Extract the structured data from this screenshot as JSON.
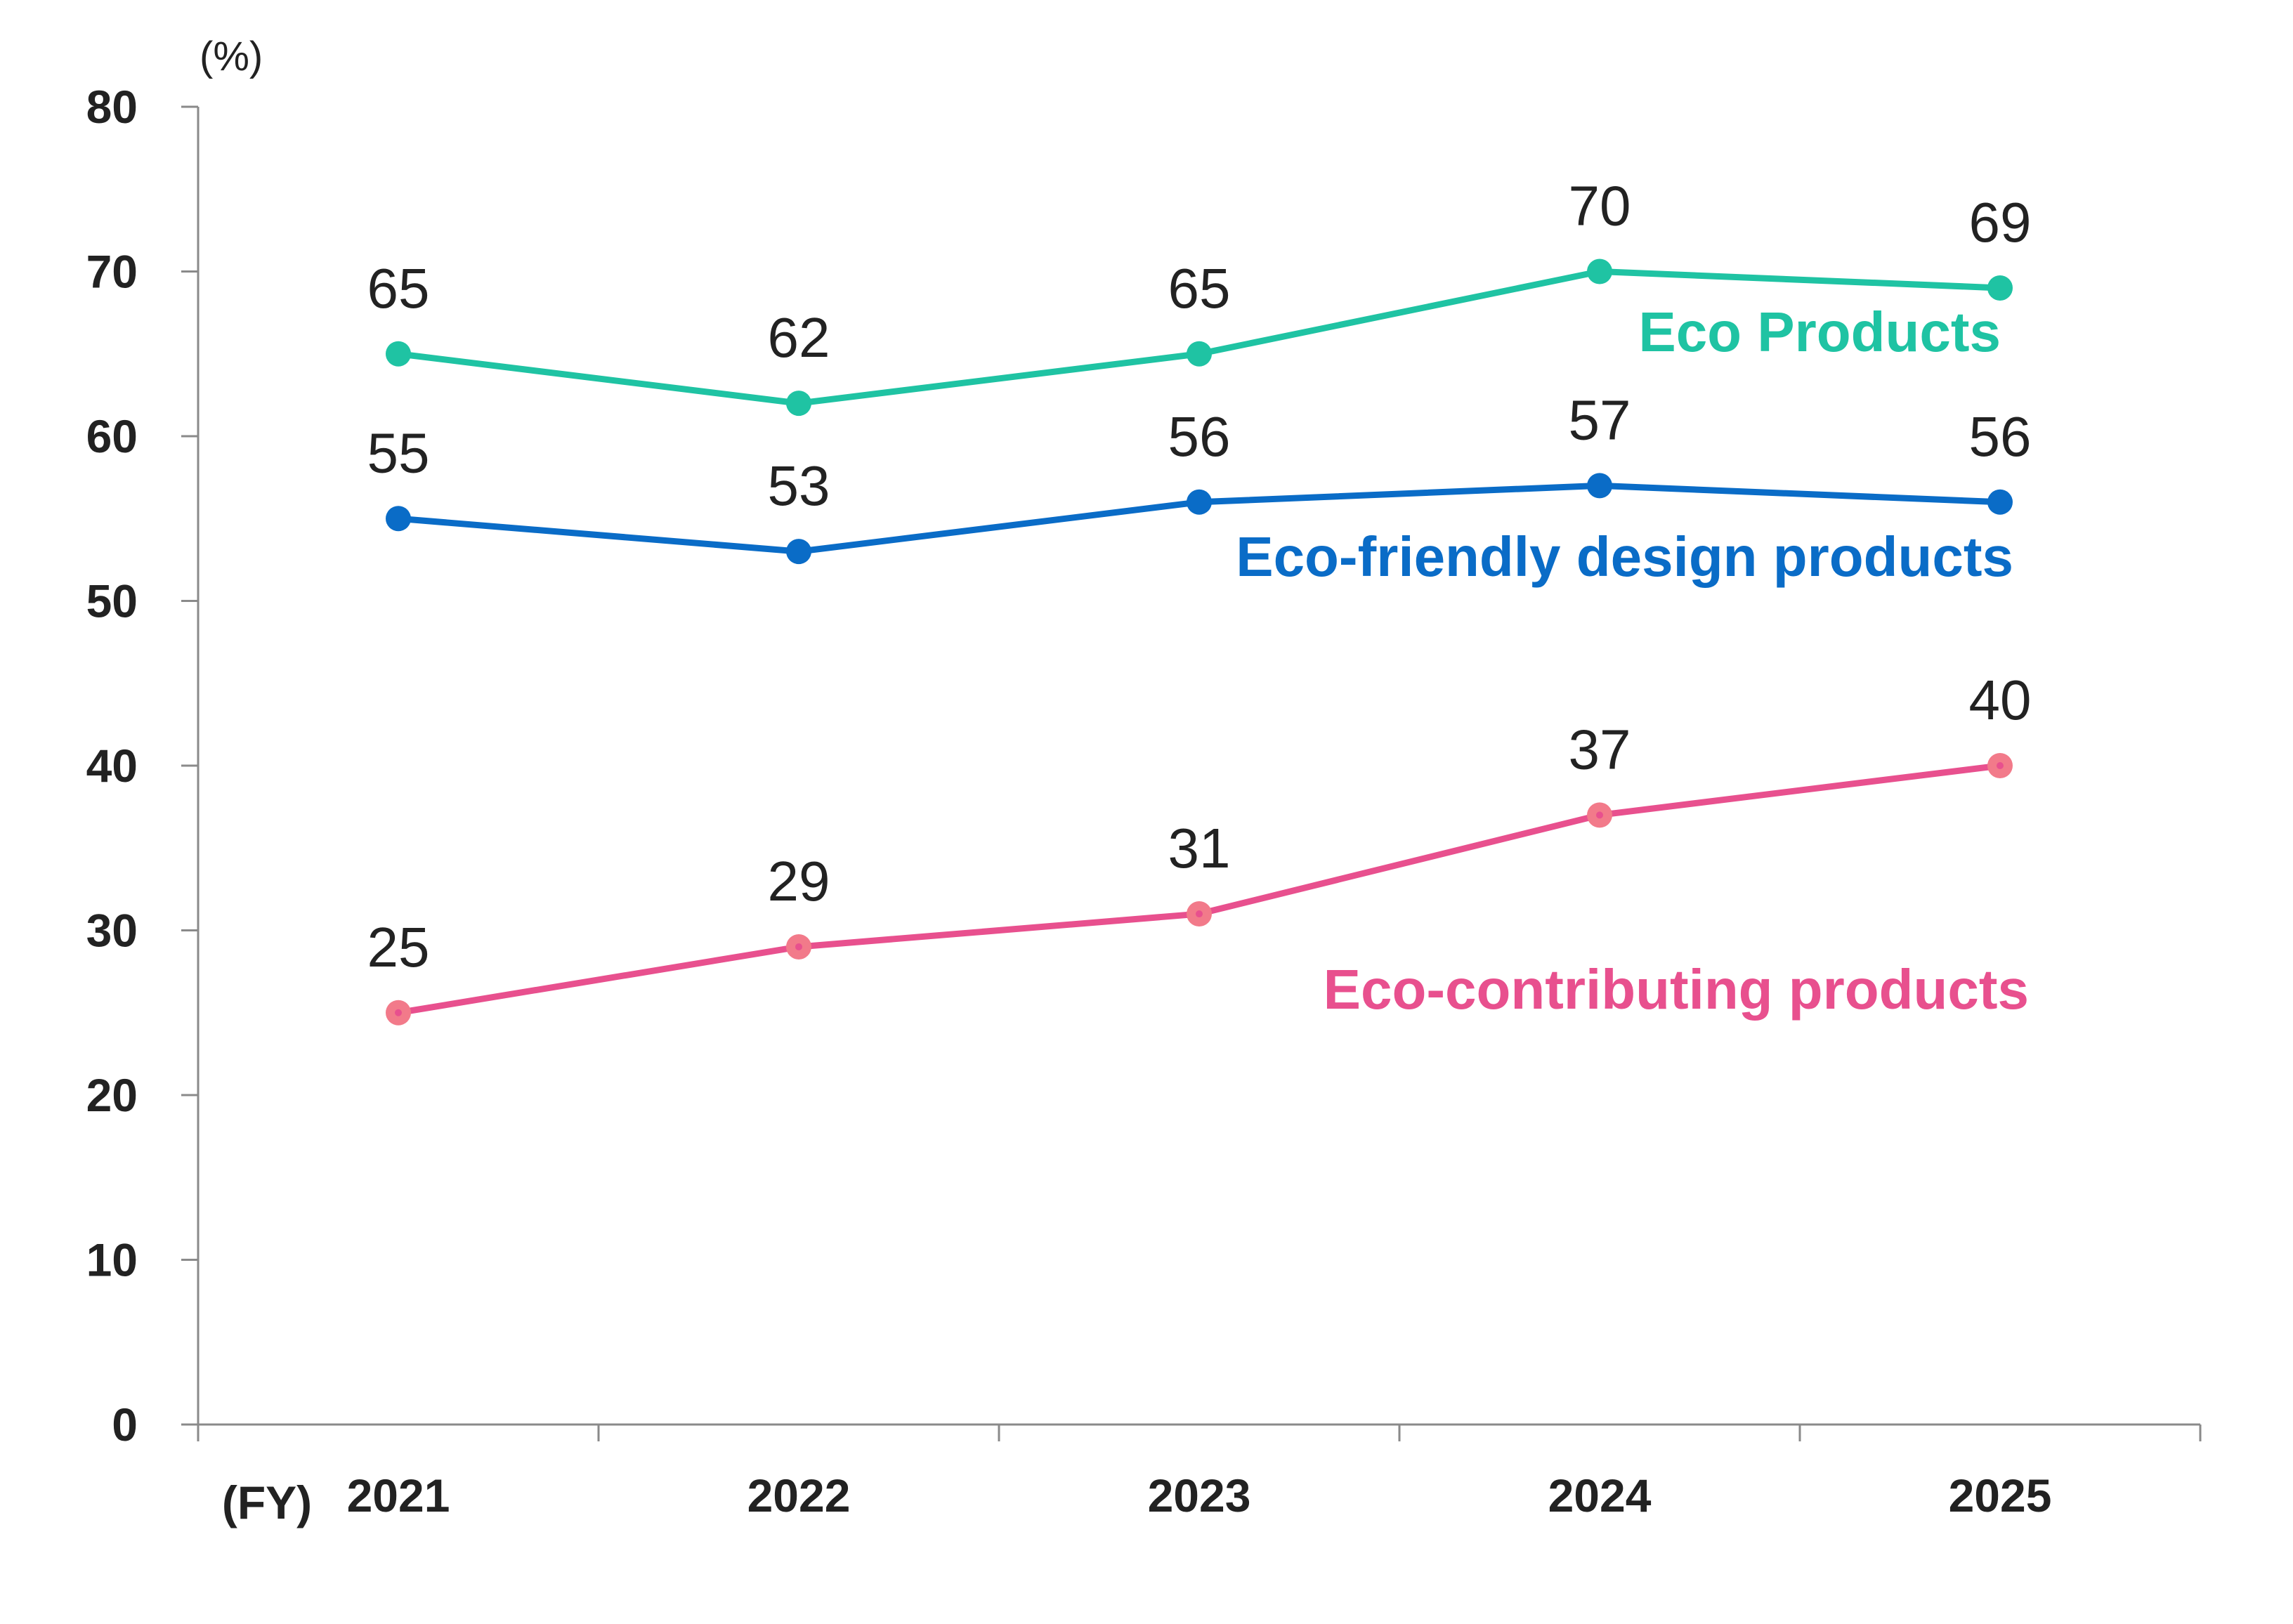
{
  "chart_data": {
    "type": "line",
    "title": "",
    "xlabel": "(FY)",
    "ylabel": "(%)",
    "ylim": [
      0,
      80
    ],
    "yticks": [
      0,
      10,
      20,
      30,
      40,
      50,
      60,
      70,
      80
    ],
    "categories": [
      "2021",
      "2022",
      "2023",
      "2024",
      "2025"
    ],
    "grid": false,
    "legend": "inline labels near series at right",
    "series": [
      {
        "name": "Eco Products",
        "color": "#1fc3a3",
        "values": [
          65,
          62,
          65,
          70,
          69
        ],
        "data_labels": [
          "65",
          "62",
          "65",
          "70",
          "69"
        ]
      },
      {
        "name": "Eco-friendly design products",
        "color": "#0a6cc7",
        "values": [
          55,
          53,
          56,
          57,
          56
        ],
        "data_labels": [
          "55",
          "53",
          "56",
          "57",
          "56"
        ]
      },
      {
        "name": "Eco-contributing products",
        "color": "#e8508e",
        "marker_color": "#f27a8a",
        "values": [
          25,
          29,
          31,
          37,
          40
        ],
        "data_labels": [
          "25",
          "29",
          "31",
          "37",
          "40"
        ]
      }
    ]
  }
}
